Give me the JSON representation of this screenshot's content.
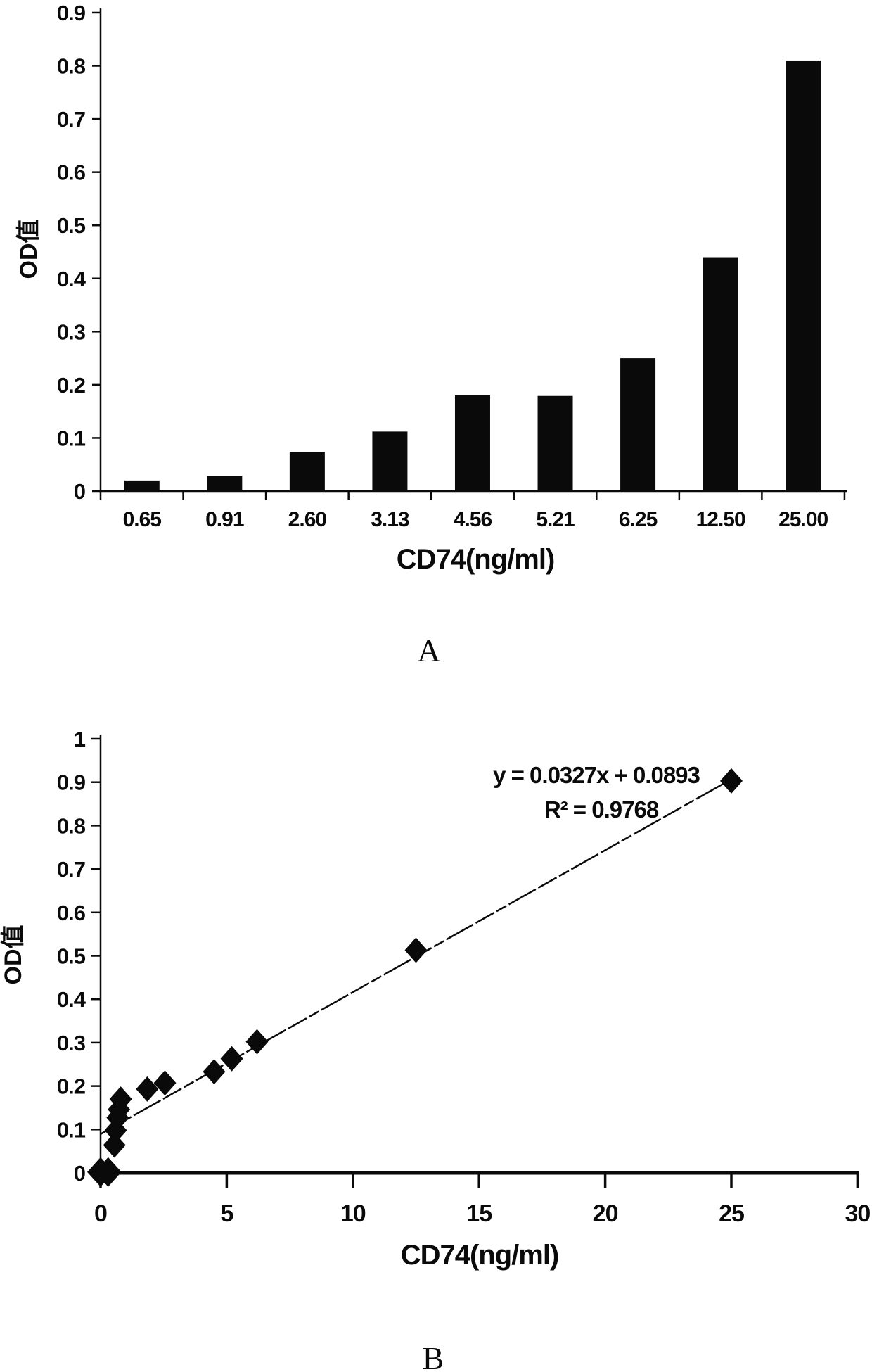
{
  "figure": {
    "background": "#ffffff",
    "ink_color": "#0a0a0a"
  },
  "chart_data": [
    {
      "type": "bar",
      "panel_label": "A",
      "xlabel": "CD74(ng/ml)",
      "ylabel": "OD值",
      "categories": [
        "0.65",
        "0.91",
        "2.60",
        "3.13",
        "4.56",
        "5.21",
        "6.25",
        "12.50",
        "25.00"
      ],
      "values": [
        0.02,
        0.029,
        0.074,
        0.112,
        0.18,
        0.179,
        0.25,
        0.44,
        0.81
      ],
      "yticks": [
        "0",
        "0.1",
        "0.2",
        "0.3",
        "0.4",
        "0.5",
        "0.6",
        "0.7",
        "0.8",
        "0.9"
      ],
      "ylim": [
        0,
        0.9
      ],
      "bar_color": "#0a0a0a",
      "grid": false,
      "legend": "none"
    },
    {
      "type": "scatter",
      "panel_label": "B",
      "xlabel": "CD74(ng/ml)",
      "ylabel": "OD值",
      "marker": "diamond",
      "marker_color": "#0a0a0a",
      "points": [
        [
          0,
          0.002
        ],
        [
          0.3,
          0.002
        ],
        [
          0.55,
          0.064
        ],
        [
          0.6,
          0.098
        ],
        [
          0.68,
          0.127
        ],
        [
          0.73,
          0.146
        ],
        [
          0.8,
          0.17
        ],
        [
          1.85,
          0.193
        ],
        [
          2.55,
          0.207
        ],
        [
          4.5,
          0.233
        ],
        [
          5.2,
          0.263
        ],
        [
          6.2,
          0.302
        ],
        [
          12.5,
          0.513
        ],
        [
          25,
          0.903
        ]
      ],
      "error_bars": [
        {
          "x": 4.5,
          "y": 0.233,
          "e": 0.012
        },
        {
          "x": 5.2,
          "y": 0.263,
          "e": 0.013
        },
        {
          "x": 6.2,
          "y": 0.302,
          "e": 0.02
        }
      ],
      "trendline": {
        "slope": 0.0327,
        "intercept": 0.0893,
        "x_start": 0,
        "x_end": 25.1
      },
      "equation": "y = 0.0327x + 0.0893",
      "r_squared": "R² = 0.9768",
      "xticks": [
        "0",
        "5",
        "10",
        "15",
        "20",
        "25",
        "30"
      ],
      "yticks": [
        "0",
        "0.1",
        "0.2",
        "0.3",
        "0.4",
        "0.5",
        "0.6",
        "0.7",
        "0.8",
        "0.9",
        "1"
      ],
      "xlim": [
        0,
        30
      ],
      "ylim": [
        0,
        1
      ],
      "grid": false,
      "legend": "none"
    }
  ]
}
